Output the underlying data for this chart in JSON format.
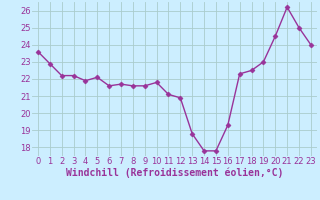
{
  "x": [
    0,
    1,
    2,
    3,
    4,
    5,
    6,
    7,
    8,
    9,
    10,
    11,
    12,
    13,
    14,
    15,
    16,
    17,
    18,
    19,
    20,
    21,
    22,
    23
  ],
  "y": [
    23.6,
    22.9,
    22.2,
    22.2,
    21.9,
    22.1,
    21.6,
    21.7,
    21.6,
    21.6,
    21.8,
    21.1,
    20.9,
    18.8,
    17.8,
    17.8,
    19.3,
    22.3,
    22.5,
    23.0,
    24.5,
    26.2,
    25.0,
    24.0
  ],
  "line_color": "#993399",
  "marker": "D",
  "marker_size": 2.5,
  "linewidth": 1.0,
  "bg_color": "#cceeff",
  "grid_color": "#aacccc",
  "xlabel": "Windchill (Refroidissement éolien,°C)",
  "xlabel_fontsize": 7,
  "tick_fontsize": 6,
  "ylim": [
    17.5,
    26.5
  ],
  "xlim": [
    -0.5,
    23.5
  ],
  "yticks": [
    18,
    19,
    20,
    21,
    22,
    23,
    24,
    25,
    26
  ],
  "xticks": [
    0,
    1,
    2,
    3,
    4,
    5,
    6,
    7,
    8,
    9,
    10,
    11,
    12,
    13,
    14,
    15,
    16,
    17,
    18,
    19,
    20,
    21,
    22,
    23
  ]
}
